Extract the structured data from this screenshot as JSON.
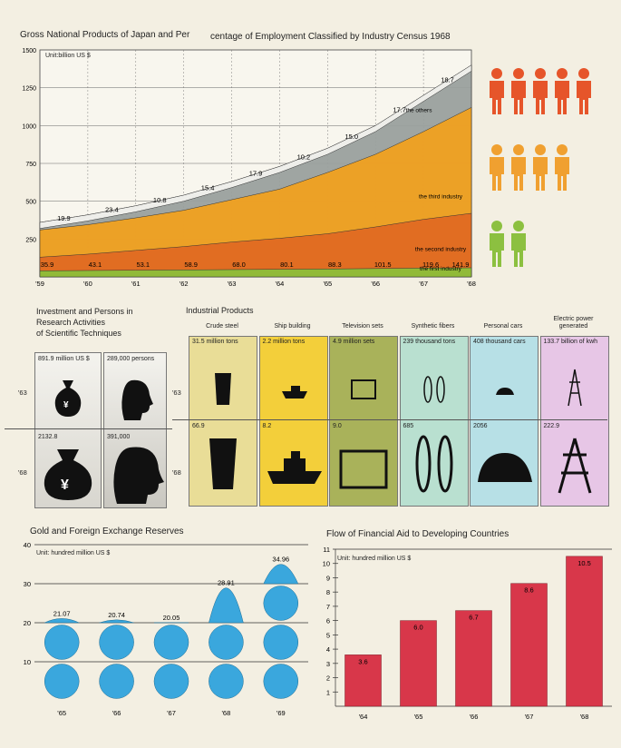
{
  "colors": {
    "bg": "#f3efe2",
    "others": "#9aa09d",
    "third": "#f0a020",
    "second": "#e06a22",
    "first": "#8cbf3a",
    "coin": "#3aa7dd",
    "aid": "#d8374a",
    "people_red": "#e6552a",
    "people_orange": "#f0a030",
    "people_green": "#8cc040"
  },
  "gnp": {
    "title_left": "Gross National Products of Japan and Per",
    "title_right": "centage of Employment Classified by Industry Census 1968",
    "unit": "Unit:billion  US $",
    "ymax_label": "1500",
    "y_ticks": [
      "1500",
      "1250",
      "1000",
      "750",
      "500",
      "250"
    ],
    "x_labels": [
      "'59",
      "'60",
      "'61",
      "'62",
      "'63",
      "'64",
      "'65",
      "'66",
      "'67",
      "'68"
    ],
    "legend": {
      "others": "the others",
      "third": "the third industry",
      "second": "the second industry",
      "first": "the first industry"
    }
  },
  "chart_data": [
    {
      "type": "area",
      "title": "Gross National Products of Japan and Percentage of Employment Classified by Industry Census 1968",
      "ylabel": "Unit:billion US $",
      "ylim": [
        0,
        1500
      ],
      "x": [
        "'59",
        "'60",
        "'61",
        "'62",
        "'63",
        "'64",
        "'65",
        "'66",
        "'67",
        "'68"
      ],
      "series": [
        {
          "name": "the first industry",
          "values": [
            40,
            42,
            44,
            46,
            48,
            50,
            52,
            55,
            58,
            60
          ]
        },
        {
          "name": "the second industry",
          "values": [
            130,
            150,
            175,
            200,
            230,
            255,
            285,
            330,
            380,
            420
          ]
        },
        {
          "name": "the third industry",
          "values": [
            310,
            345,
            390,
            440,
            510,
            580,
            690,
            810,
            960,
            1120
          ]
        },
        {
          "name": "the others",
          "values": [
            360,
            410,
            470,
            540,
            630,
            730,
            850,
            1000,
            1200,
            1400
          ]
        }
      ],
      "labels_top": [
        "19.9",
        "23.4",
        "10.8",
        "15.4",
        "17.9",
        "10.2",
        "15.0",
        "17.7",
        "18.7"
      ],
      "labels_bottom": [
        "35.9",
        "43.1",
        "53.1",
        "58.9",
        "68.0",
        "80.1",
        "88.3",
        "101.5",
        "119.6",
        "141.9"
      ]
    },
    {
      "type": "bar",
      "title": "Gold and Foreign Exchange Reserves",
      "ylabel": "Unit: hundred million US $",
      "ylim": [
        0,
        40
      ],
      "categories": [
        "'65",
        "'66",
        "'67",
        "'68",
        "'69"
      ],
      "values": [
        21.07,
        20.74,
        20.05,
        28.91,
        34.96
      ]
    },
    {
      "type": "bar",
      "title": "Flow of Financial Aid to Developing Countries",
      "ylabel": "Unit: hundred million US $",
      "ylim": [
        0,
        11
      ],
      "categories": [
        "'64",
        "'65",
        "'66",
        "'67",
        "'68"
      ],
      "values": [
        3.6,
        6.0,
        6.7,
        8.6,
        10.5
      ]
    }
  ],
  "research": {
    "title_lines": [
      "Investment and Persons in",
      "Research Activities",
      "of Scientific Techniques"
    ],
    "year_63": "'63",
    "year_68": "'68",
    "money_63": "891.9 million US $",
    "persons_63": "289,000 persons",
    "money_68": "2132.8",
    "persons_68": "391,000"
  },
  "industrial": {
    "title": "Industrial Products",
    "year_63": "'63",
    "year_68": "'68",
    "items": [
      {
        "name": "Crude steel",
        "v63": "31.5 million  tons",
        "v68": "66.9",
        "color": "#e9dd97"
      },
      {
        "name": "Ship building",
        "v63": "2.2 million   tons",
        "v68": "8.2",
        "color": "#f3cf3a"
      },
      {
        "name": "Television sets",
        "v63": "4.9 million   sets",
        "v68": "9.0",
        "color": "#a9b25a"
      },
      {
        "name": "Synthetic fibers",
        "v63": "239 thousand tons",
        "v68": "685",
        "color": "#b9e0d0"
      },
      {
        "name": "Personal cars",
        "v63": "408 thousand cars",
        "v68": "2056",
        "color": "#b7e0e6"
      },
      {
        "name": "Electric power generated",
        "v63": "133.7 billion of kwh",
        "v68": "222.9",
        "color": "#e7c6e6"
      }
    ]
  },
  "gold": {
    "title": "Gold and Foreign Exchange Reserves",
    "unit": "Unit: hundred million US $",
    "y_ticks": [
      "40",
      "30",
      "20",
      "10"
    ]
  },
  "aid": {
    "title": "Flow of Financial Aid to Developing Countries",
    "unit": "Unit: hundred million US $",
    "y_ticks": [
      "11",
      "10",
      "9",
      "8",
      "7",
      "6",
      "5",
      "4",
      "3",
      "2",
      "1"
    ]
  }
}
